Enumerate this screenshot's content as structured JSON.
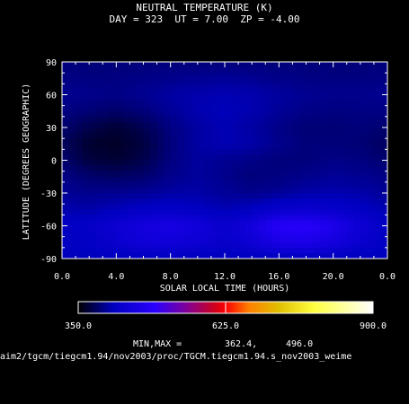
{
  "chart_data": {
    "type": "heatmap",
    "title": "NEUTRAL TEMPERATURE (K)",
    "subtitle": {
      "day_label": "DAY =",
      "day": "323",
      "ut_label": "UT =",
      "ut": "7.00",
      "zp_label": "ZP =",
      "zp": "-4.00"
    },
    "xlabel": "SOLAR LOCAL TIME (HOURS)",
    "ylabel": "LATITUDE (DEGREES GEOGRAPHIC)",
    "xlim": [
      0,
      24
    ],
    "ylim": [
      -90,
      90
    ],
    "x_ticks": [
      "0.0",
      "4.0",
      "8.0",
      "12.0",
      "16.0",
      "20.0",
      "0.0"
    ],
    "y_ticks": [
      "90",
      "60",
      "30",
      "0",
      "-30",
      "-60",
      "-90"
    ],
    "x_local_time": [
      0,
      2,
      4,
      6,
      8,
      10,
      12,
      14,
      16,
      18,
      20,
      22,
      24
    ],
    "y_latitude": [
      90,
      75,
      60,
      45,
      30,
      15,
      0,
      -15,
      -30,
      -45,
      -60,
      -75,
      -90
    ],
    "temperature_K": [
      [
        392,
        392,
        392,
        392,
        392,
        392,
        392,
        392,
        392,
        392,
        392,
        392,
        392
      ],
      [
        395,
        394,
        394,
        396,
        398,
        400,
        402,
        400,
        397,
        395,
        394,
        394,
        395
      ],
      [
        400,
        398,
        396,
        400,
        406,
        410,
        412,
        410,
        404,
        400,
        398,
        398,
        400
      ],
      [
        395,
        390,
        386,
        392,
        402,
        410,
        414,
        410,
        402,
        396,
        394,
        395,
        395
      ],
      [
        388,
        376,
        368,
        378,
        394,
        406,
        412,
        406,
        396,
        390,
        390,
        392,
        388
      ],
      [
        382,
        366,
        363,
        372,
        392,
        406,
        412,
        408,
        398,
        392,
        392,
        390,
        382
      ],
      [
        388,
        372,
        368,
        376,
        394,
        404,
        400,
        396,
        392,
        392,
        396,
        394,
        388
      ],
      [
        396,
        388,
        384,
        388,
        398,
        404,
        398,
        392,
        394,
        398,
        402,
        400,
        396
      ],
      [
        402,
        398,
        400,
        402,
        406,
        408,
        402,
        398,
        402,
        408,
        410,
        408,
        402
      ],
      [
        410,
        408,
        414,
        420,
        424,
        418,
        412,
        418,
        430,
        432,
        428,
        420,
        410
      ],
      [
        420,
        424,
        438,
        452,
        460,
        448,
        430,
        450,
        486,
        488,
        470,
        440,
        420
      ],
      [
        418,
        420,
        432,
        444,
        446,
        438,
        428,
        440,
        462,
        466,
        452,
        432,
        418
      ],
      [
        414,
        414,
        414,
        414,
        414,
        414,
        414,
        414,
        414,
        414,
        414,
        414,
        414
      ]
    ],
    "colorbar": {
      "min": 350,
      "max": 900,
      "labels": [
        "350.0",
        "625.0",
        "900.0"
      ]
    },
    "min_max_label": "MIN,MAX =",
    "min": "362.4,",
    "max": "496.0",
    "file_path": "aim2/tgcm/tiegcm1.94/nov2003/proc/TGCM.tiegcm1.94.s_nov2003_weime"
  }
}
